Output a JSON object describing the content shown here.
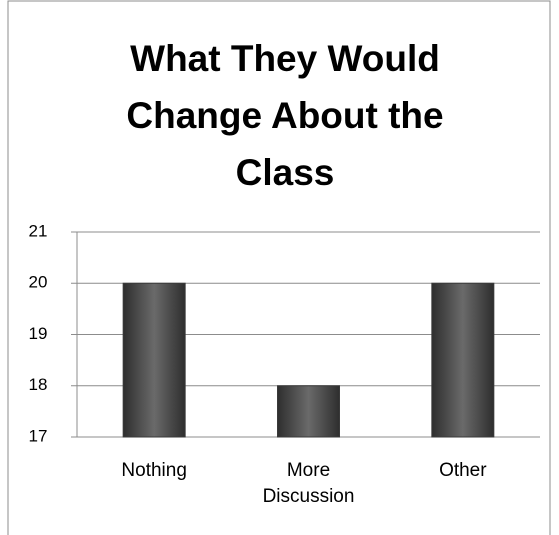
{
  "chart_data": {
    "type": "bar",
    "title": "What They Would Change About the Class",
    "categories": [
      "Nothing",
      "More Discussion",
      "Other"
    ],
    "values": [
      20,
      18,
      20
    ],
    "color": "#555555",
    "ylim": [
      17,
      21
    ],
    "yticks": [
      17,
      18,
      19,
      20,
      21
    ],
    "grid": true
  }
}
